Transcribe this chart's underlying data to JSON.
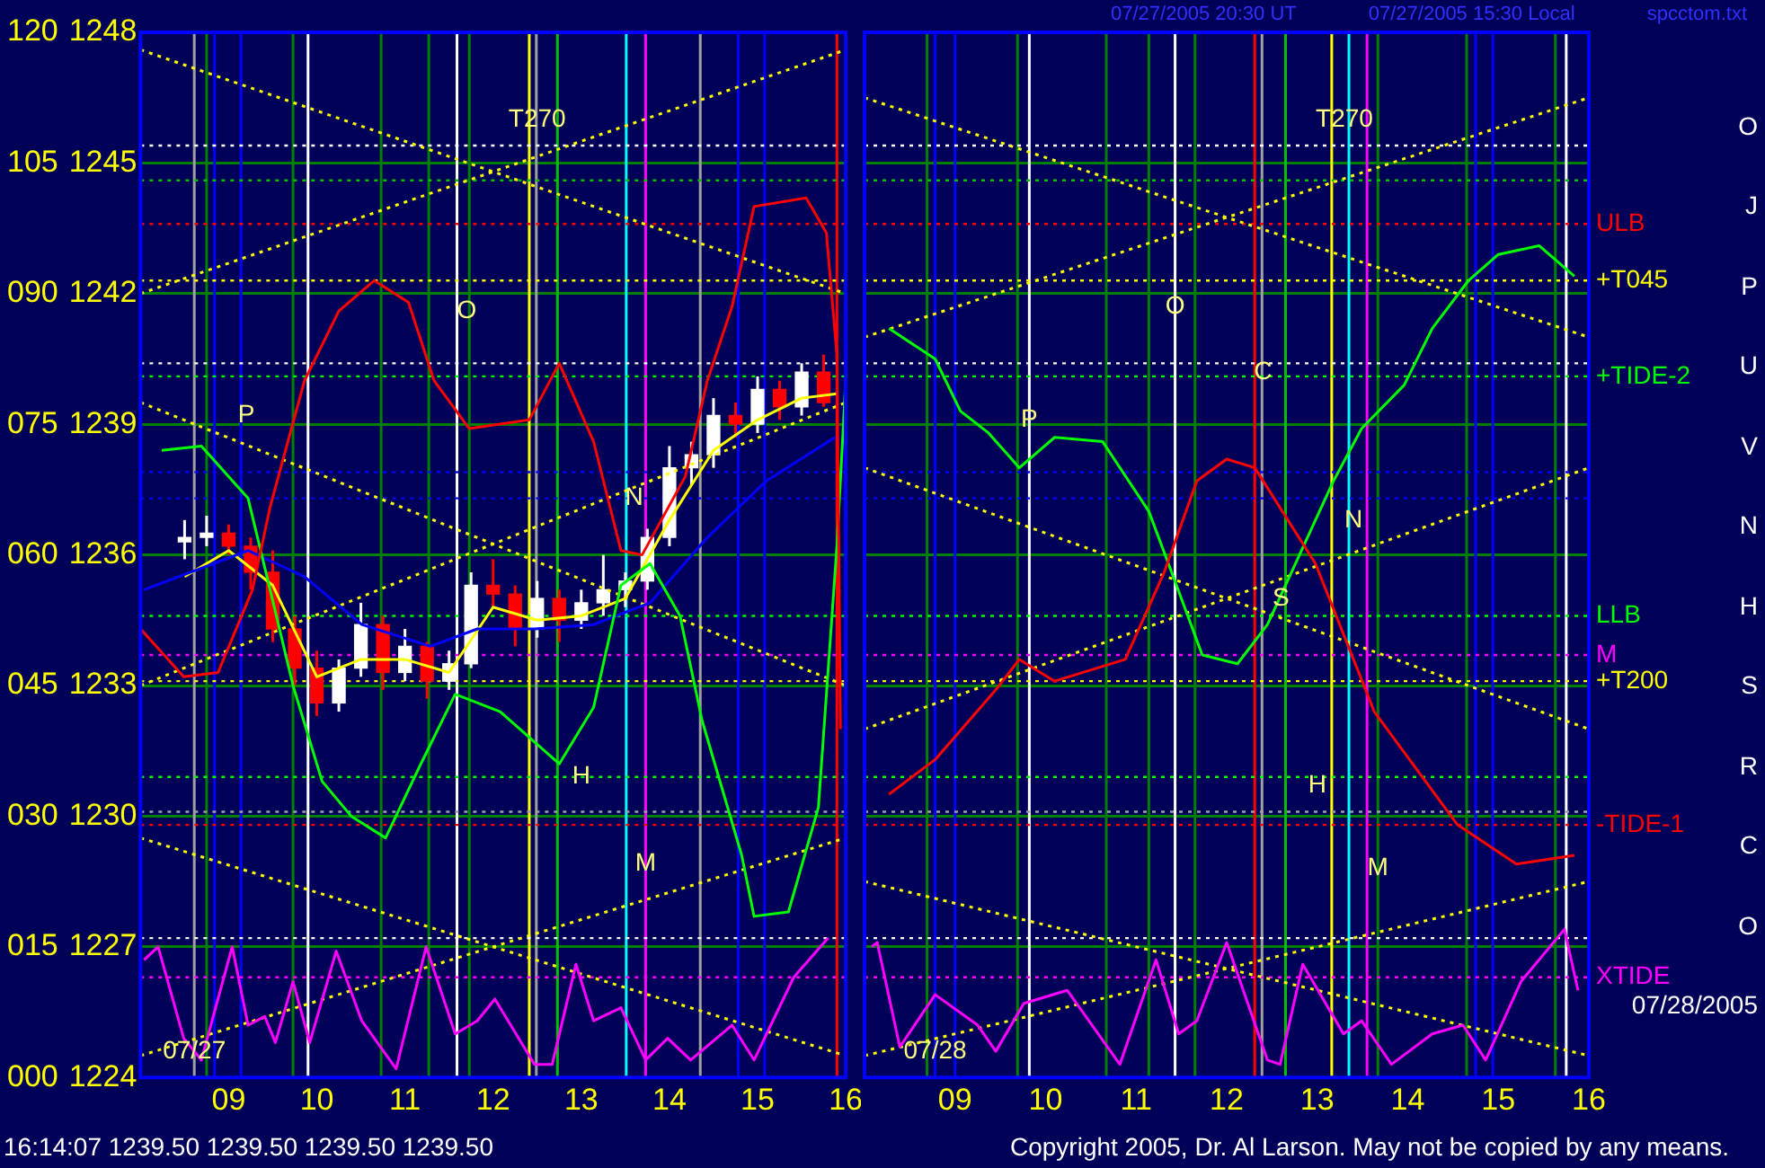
{
  "chart_data": [
    {
      "type": "candlestick",
      "xlim": [
        8,
        16
      ],
      "ylim": [
        1224,
        1248
      ],
      "y2lim": [
        0,
        120
      ],
      "xticks": [
        {
          "value": 9,
          "label": "09"
        },
        10,
        11,
        12,
        13,
        14,
        15,
        16
      ],
      "yticks": [
        1224,
        1227,
        1230,
        1233,
        1236,
        1239,
        1242,
        1245,
        1248
      ],
      "y2ticks": [
        {
          "value": 0,
          "label": "000"
        },
        {
          "value": 15,
          "label": "015"
        },
        {
          "value": 30,
          "label": "030"
        },
        {
          "value": 45,
          "label": "045"
        },
        {
          "value": 60,
          "label": "060"
        },
        {
          "value": 75,
          "label": "075"
        },
        {
          "value": 90,
          "label": "090"
        },
        105,
        120
      ],
      "grid": "y",
      "legend": false,
      "marker": "none",
      "series": [
        {
          "type": "line",
          "color": "#ff0000",
          "x": [
            8.0,
            8.49,
            8.88,
            9.27,
            9.47,
            9.86,
            10.25,
            10.65,
            11.04,
            11.33,
            11.73,
            12.41,
            12.75,
            13.14,
            13.45,
            13.69,
            14.18,
            14.43,
            14.71,
            14.96,
            15.55,
            15.78,
            15.9,
            15.94
          ],
          "values": [
            1234.3,
            1233.2,
            1233.3,
            1235.2,
            1237.1,
            1240.0,
            1241.6,
            1242.3,
            1241.8,
            1240.0,
            1238.9,
            1239.1,
            1240.4,
            1238.6,
            1236.1,
            1236.0,
            1237.8,
            1240.0,
            1241.7,
            1244.0,
            1244.2,
            1243.4,
            1240.6,
            1232.0
          ]
        },
        {
          "type": "line",
          "color": "#00ff00",
          "x": [
            8.24,
            8.69,
            9.22,
            9.47,
            9.73,
            10.06,
            10.39,
            10.78,
            11.18,
            11.57,
            12.08,
            12.75,
            13.14,
            13.45,
            13.78,
            14.12,
            14.37,
            14.82,
            14.96,
            15.35,
            15.69,
            15.9,
            16.0
          ],
          "values": [
            1238.4,
            1238.5,
            1237.3,
            1235.2,
            1233.0,
            1230.8,
            1230.0,
            1229.5,
            1231.2,
            1232.8,
            1232.4,
            1231.2,
            1232.5,
            1235.3,
            1235.8,
            1234.6,
            1232.2,
            1229.1,
            1227.7,
            1227.8,
            1230.2,
            1236.2,
            1240.0
          ]
        },
        {
          "type": "line",
          "color": "#ff00ff",
          "x": [
            8.04,
            8.2,
            8.49,
            8.69,
            9.04,
            9.22,
            9.41,
            9.53,
            9.73,
            9.92,
            10.22,
            10.51,
            10.9,
            11.24,
            11.57,
            11.82,
            12.02,
            12.47,
            12.67,
            12.94,
            13.14,
            13.45,
            13.73,
            13.98,
            14.24,
            14.71,
            14.96,
            15.41,
            15.8
          ],
          "values": [
            1226.7,
            1227.0,
            1224.9,
            1224.4,
            1227.0,
            1225.2,
            1225.4,
            1224.8,
            1226.2,
            1224.8,
            1226.9,
            1225.3,
            1224.2,
            1227.0,
            1225.0,
            1225.3,
            1225.8,
            1224.3,
            1224.3,
            1226.6,
            1225.3,
            1225.6,
            1224.4,
            1224.9,
            1224.4,
            1225.2,
            1224.4,
            1226.3,
            1227.2
          ]
        },
        {
          "type": "line",
          "color": "#0000ff",
          "x": [
            8.04,
            9.22,
            9.86,
            10.51,
            11.29,
            11.82,
            12.47,
            13.14,
            13.78,
            14.43,
            15.1,
            15.88
          ],
          "values": [
            1235.2,
            1236.1,
            1235.5,
            1234.4,
            1233.9,
            1234.3,
            1234.3,
            1234.4,
            1234.9,
            1236.4,
            1237.7,
            1238.7
          ]
        },
        {
          "type": "line",
          "color": "#ffff00",
          "x": [
            8.5,
            9.0,
            9.5,
            10.0,
            10.5,
            11.0,
            11.5,
            12.0,
            12.5,
            13.0,
            13.5,
            14.0,
            14.5,
            15.0,
            15.5,
            15.9
          ],
          "values": [
            1235.5,
            1236.1,
            1235.3,
            1233.2,
            1233.6,
            1233.6,
            1233.3,
            1234.8,
            1234.5,
            1234.6,
            1235.0,
            1236.8,
            1238.4,
            1239.1,
            1239.6,
            1239.7
          ]
        },
        {
          "type": "line",
          "color": "#ffff00",
          "line_style": "dotted",
          "x": [
            8,
            16
          ],
          "values": [
            1247.6,
            1242.0
          ]
        },
        {
          "type": "line",
          "color": "#ffff00",
          "line_style": "dotted",
          "x": [
            8,
            16
          ],
          "values": [
            1242.0,
            1247.6
          ]
        },
        {
          "type": "line",
          "color": "#ffff00",
          "line_style": "dotted",
          "x": [
            8,
            16
          ],
          "values": [
            1239.5,
            1233.0
          ]
        },
        {
          "type": "line",
          "color": "#ffff00",
          "line_style": "dotted",
          "x": [
            8,
            16
          ],
          "values": [
            1233.0,
            1239.5
          ]
        },
        {
          "type": "line",
          "color": "#ffff00",
          "line_style": "dotted",
          "x": [
            8,
            16
          ],
          "values": [
            1229.5,
            1224.5
          ]
        },
        {
          "type": "line",
          "color": "#ffff00",
          "line_style": "dotted",
          "x": [
            8,
            16
          ],
          "values": [
            1224.5,
            1229.5
          ]
        },
        {
          "x": [
            8.5,
            8.75,
            9.0,
            9.25,
            9.5,
            9.75,
            10.0,
            10.25,
            10.5,
            10.75,
            11.0,
            11.25,
            11.5,
            11.75,
            12.0,
            12.25,
            12.5,
            12.75,
            13.0,
            13.25,
            13.5,
            13.75,
            14.0,
            14.25,
            14.5,
            14.75,
            15.0,
            15.25,
            15.5,
            15.75
          ],
          "colors": [
            "#ffffff",
            "#ffffff",
            "#ff0000",
            "#ff0000",
            "#ff0000",
            "#ff0000",
            "#ff0000",
            "#ffffff",
            "#ffffff",
            "#ff0000",
            "#ffffff",
            "#ff0000",
            "#ffffff",
            "#ffffff",
            "#ff0000",
            "#ff0000",
            "#ffffff",
            "#ff0000",
            "#ffffff",
            "#ffffff",
            "#ffffff",
            "#ffffff",
            "#ffffff",
            "#ffffff",
            "#ffffff",
            "#ff0000",
            "#ffffff",
            "#ff0000",
            "#ffffff",
            "#ff0000"
          ],
          "ohlc": [
            [
              1236.3,
              1236.8,
              1235.9,
              1236.4
            ],
            [
              1236.4,
              1236.9,
              1236.2,
              1236.5
            ],
            [
              1236.5,
              1236.7,
              1236.0,
              1236.2
            ],
            [
              1236.2,
              1236.4,
              1235.2,
              1235.6
            ],
            [
              1235.6,
              1236.1,
              1234.0,
              1234.3
            ],
            [
              1234.3,
              1234.6,
              1233.0,
              1233.4
            ],
            [
              1233.4,
              1233.8,
              1232.3,
              1232.6
            ],
            [
              1232.6,
              1233.6,
              1232.4,
              1233.4
            ],
            [
              1233.4,
              1234.9,
              1233.2,
              1234.4
            ],
            [
              1234.4,
              1234.6,
              1232.9,
              1233.3
            ],
            [
              1233.3,
              1234.3,
              1233.1,
              1233.9
            ],
            [
              1233.9,
              1234.0,
              1232.7,
              1233.1
            ],
            [
              1233.1,
              1233.8,
              1232.9,
              1233.5
            ],
            [
              1233.5,
              1235.6,
              1233.4,
              1235.3
            ],
            [
              1235.3,
              1235.9,
              1234.8,
              1235.1
            ],
            [
              1235.1,
              1235.3,
              1233.9,
              1234.3
            ],
            [
              1234.3,
              1235.4,
              1234.1,
              1235.0
            ],
            [
              1235.0,
              1235.2,
              1234.0,
              1234.5
            ],
            [
              1234.5,
              1235.2,
              1234.3,
              1234.9
            ],
            [
              1234.9,
              1236.0,
              1234.6,
              1235.2
            ],
            [
              1235.2,
              1235.6,
              1234.8,
              1235.4
            ],
            [
              1235.4,
              1236.6,
              1235.2,
              1236.4
            ],
            [
              1236.4,
              1238.5,
              1236.2,
              1238.0
            ],
            [
              1238.0,
              1238.6,
              1237.6,
              1238.3
            ],
            [
              1238.3,
              1239.6,
              1238.0,
              1239.2
            ],
            [
              1239.2,
              1239.5,
              1238.7,
              1239.0
            ],
            [
              1239.0,
              1240.1,
              1238.8,
              1239.8
            ],
            [
              1239.8,
              1240.0,
              1239.1,
              1239.4
            ],
            [
              1239.4,
              1240.4,
              1239.2,
              1240.2
            ],
            [
              1240.2,
              1240.6,
              1239.4,
              1239.5
            ]
          ]
        }
      ],
      "ref_lines": [
        {
          "axis": "x",
          "value": 8.61,
          "color": "#a0a0a0"
        },
        {
          "axis": "x",
          "value": 8.75,
          "color": "#008000"
        },
        {
          "axis": "x",
          "value": 8.84,
          "color": "#0000ff"
        },
        {
          "axis": "x",
          "value": 9.14,
          "color": "#0000ff"
        },
        {
          "axis": "x",
          "value": 9.73,
          "color": "#008000"
        },
        {
          "axis": "x",
          "value": 9.9,
          "color": "#ffffff"
        },
        {
          "axis": "x",
          "value": 10.73,
          "color": "#008000"
        },
        {
          "axis": "x",
          "value": 11.27,
          "color": "#008000"
        },
        {
          "axis": "x",
          "value": 11.59,
          "color": "#ffffff"
        },
        {
          "axis": "x",
          "value": 11.73,
          "color": "#008000"
        },
        {
          "axis": "x",
          "value": 12.41,
          "color": "#ffff00"
        },
        {
          "axis": "x",
          "value": 12.49,
          "color": "#a0a0a0"
        },
        {
          "axis": "x",
          "value": 12.73,
          "color": "#00c000"
        },
        {
          "axis": "x",
          "value": 13.51,
          "color": "#00ffff"
        },
        {
          "axis": "x",
          "value": 13.73,
          "color": "#ff00ff"
        },
        {
          "axis": "x",
          "value": 14.35,
          "color": "#a0a0a0"
        },
        {
          "axis": "x",
          "value": 14.78,
          "color": "#0000ff"
        },
        {
          "axis": "x",
          "value": 15.08,
          "color": "#0000ff"
        },
        {
          "axis": "x",
          "value": 15.9,
          "color": "#ff0000"
        },
        {
          "axis": "y",
          "value": 1245.4,
          "color": "#ffffff",
          "line_style": "dotted"
        },
        {
          "axis": "y",
          "value": 1244.6,
          "color": "#00c000",
          "line_style": "dotted"
        },
        {
          "axis": "y",
          "value": 1243.6,
          "color": "#ff0000",
          "line_style": "dotted"
        },
        {
          "axis": "y",
          "value": 1242.3,
          "color": "#ffff00",
          "line_style": "dotted"
        },
        {
          "axis": "y",
          "value": 1240.4,
          "color": "#ffffff",
          "line_style": "dotted"
        },
        {
          "axis": "y",
          "value": 1240.1,
          "color": "#00ff00",
          "line_style": "dotted"
        },
        {
          "axis": "y",
          "value": 1237.9,
          "color": "#0000ff",
          "line_style": "dotted"
        },
        {
          "axis": "y",
          "value": 1237.3,
          "color": "#0000ff",
          "line_style": "dotted"
        },
        {
          "axis": "y",
          "value": 1234.6,
          "color": "#00ff00",
          "line_style": "dotted"
        },
        {
          "axis": "y",
          "value": 1233.7,
          "color": "#ff00ff",
          "line_style": "dotted"
        },
        {
          "axis": "y",
          "value": 1233.1,
          "color": "#ffff00",
          "line_style": "dotted"
        },
        {
          "axis": "y",
          "value": 1230.9,
          "color": "#00ff00",
          "line_style": "dotted"
        },
        {
          "axis": "y",
          "value": 1230.1,
          "color": "#a0a0a0",
          "line_style": "dotted"
        },
        {
          "axis": "y",
          "value": 1229.8,
          "color": "#ff0000",
          "line_style": "dotted"
        },
        {
          "axis": "y",
          "value": 1227.2,
          "color": "#ffffff",
          "line_style": "dotted"
        },
        {
          "axis": "y",
          "value": 1226.3,
          "color": "#ff00ff",
          "line_style": "dotted"
        }
      ],
      "annotations": [
        {
          "text": "T270",
          "x": 12.5,
          "y": 1246.0
        },
        {
          "text": "O",
          "x": 11.7,
          "y": 1241.6
        },
        {
          "text": "P",
          "x": 9.2,
          "y": 1239.2
        },
        {
          "text": "N",
          "x": 13.6,
          "y": 1237.3
        },
        {
          "text": "H",
          "x": 13.0,
          "y": 1230.9
        },
        {
          "text": "M",
          "x": 13.73,
          "y": 1228.9
        },
        {
          "text": "07/27",
          "x": 8.61,
          "y": 1224.6
        },
        "16:14:07  1239.50  1239.50  1239.50  1239.50",
        "Copyright 2005, Dr. Al Larson. May not be copied by any means."
      ]
    },
    {
      "type": "line",
      "xlim": [
        8,
        16
      ],
      "ylim": [
        1224,
        1248
      ],
      "tick_labels": "x",
      "xticks": [
        {
          "value": 9,
          "label": "09"
        },
        10,
        11,
        12,
        13,
        14,
        15,
        16
      ],
      "yticks": [
        1224,
        1227,
        1230,
        1233,
        1236,
        1239,
        1242,
        1245,
        1248
      ],
      "grid": "y",
      "legend": false,
      "marker": "none",
      "series": [
        {
          "color": "#ff0000",
          "x": [
            8.27,
            8.78,
            9.45,
            9.71,
            10.1,
            10.88,
            11.31,
            11.67,
            12.0,
            12.31,
            12.98,
            13.63,
            14.55,
            15.2,
            15.84
          ],
          "values": [
            1230.5,
            1231.3,
            1232.9,
            1233.6,
            1233.1,
            1233.6,
            1235.6,
            1237.7,
            1238.2,
            1238.0,
            1235.8,
            1232.4,
            1229.8,
            1228.9,
            1229.1
          ]
        },
        {
          "color": "#00ff00",
          "x": [
            8.27,
            8.78,
            9.06,
            9.37,
            9.71,
            10.1,
            10.63,
            11.14,
            11.41,
            11.73,
            12.12,
            12.45,
            13.18,
            13.49,
            13.96,
            14.27,
            14.67,
            15.0,
            15.45,
            15.84
          ],
          "values": [
            1241.2,
            1240.5,
            1239.3,
            1238.8,
            1238.0,
            1238.7,
            1238.6,
            1237.0,
            1235.5,
            1233.7,
            1233.5,
            1234.4,
            1237.7,
            1238.9,
            1239.9,
            1241.2,
            1242.3,
            1242.9,
            1243.1,
            1242.4
          ]
        },
        {
          "color": "#ff00ff",
          "x": [
            8.08,
            8.14,
            8.39,
            8.78,
            9.25,
            9.45,
            9.76,
            10.24,
            10.82,
            11.22,
            11.47,
            11.67,
            12.0,
            12.45,
            12.59,
            12.84,
            13.29,
            13.49,
            13.82,
            14.27,
            14.61,
            14.86,
            15.25,
            15.73,
            15.88
          ],
          "values": [
            1227.0,
            1227.1,
            1224.7,
            1225.9,
            1225.2,
            1224.6,
            1225.7,
            1226.0,
            1224.3,
            1226.7,
            1225.0,
            1225.3,
            1227.1,
            1224.4,
            1224.3,
            1226.6,
            1225.0,
            1225.3,
            1224.3,
            1225.0,
            1225.2,
            1224.4,
            1226.2,
            1227.4,
            1226.0
          ]
        },
        {
          "color": "#ffff00",
          "line_style": "dotted",
          "x": [
            8,
            16
          ],
          "values": [
            1246.5,
            1241.0
          ]
        },
        {
          "color": "#ffff00",
          "line_style": "dotted",
          "x": [
            8,
            16
          ],
          "values": [
            1241.0,
            1246.5
          ]
        },
        {
          "color": "#ffff00",
          "line_style": "dotted",
          "x": [
            8,
            16
          ],
          "values": [
            1238.0,
            1232.0
          ]
        },
        {
          "color": "#ffff00",
          "line_style": "dotted",
          "x": [
            8,
            16
          ],
          "values": [
            1232.0,
            1238.0
          ]
        },
        {
          "color": "#ffff00",
          "line_style": "dotted",
          "x": [
            8,
            16
          ],
          "values": [
            1228.5,
            1224.5
          ]
        },
        {
          "color": "#ffff00",
          "line_style": "dotted",
          "x": [
            8,
            16
          ],
          "values": [
            1224.5,
            1228.5
          ]
        }
      ],
      "ref_lines": [
        {
          "axis": "x",
          "value": 8.69,
          "color": "#008000"
        },
        {
          "axis": "x",
          "value": 8.78,
          "color": "#0000ff"
        },
        {
          "axis": "x",
          "value": 9.0,
          "color": "#0000ff"
        },
        {
          "axis": "x",
          "value": 9.69,
          "color": "#008000"
        },
        {
          "axis": "x",
          "value": 9.82,
          "color": "#ffffff"
        },
        {
          "axis": "x",
          "value": 10.67,
          "color": "#008000"
        },
        {
          "axis": "x",
          "value": 11.14,
          "color": "#008000"
        },
        {
          "axis": "x",
          "value": 11.43,
          "color": "#ffffff"
        },
        {
          "axis": "x",
          "value": 11.65,
          "color": "#008000"
        },
        {
          "axis": "x",
          "value": 12.31,
          "color": "#ff0000"
        },
        {
          "axis": "x",
          "value": 12.39,
          "color": "#a0a0a0"
        },
        {
          "axis": "x",
          "value": 12.65,
          "color": "#00c000"
        },
        {
          "axis": "x",
          "value": 13.16,
          "color": "#ffff00"
        },
        {
          "axis": "x",
          "value": 13.35,
          "color": "#00ffff"
        },
        {
          "axis": "x",
          "value": 13.55,
          "color": "#ff00ff"
        },
        {
          "axis": "x",
          "value": 13.67,
          "color": "#008000"
        },
        {
          "axis": "x",
          "value": 14.65,
          "color": "#008000"
        },
        {
          "axis": "x",
          "value": 14.75,
          "color": "#0000ff"
        },
        {
          "axis": "x",
          "value": 14.94,
          "color": "#0000ff"
        },
        {
          "axis": "x",
          "value": 15.63,
          "color": "#008000"
        },
        {
          "axis": "x",
          "value": 15.75,
          "color": "#ffffff"
        },
        {
          "axis": "y",
          "value": 1245.4,
          "color": "#ffffff",
          "line_style": "dotted"
        },
        {
          "axis": "y",
          "value": 1244.6,
          "color": "#00c000",
          "line_style": "dotted"
        },
        {
          "axis": "y",
          "value": 1243.6,
          "color": "#ff0000",
          "line_style": "dotted",
          "label": "ULB"
        },
        {
          "axis": "y",
          "value": 1242.3,
          "color": "#ffff00",
          "line_style": "dotted",
          "label": "+T045"
        },
        {
          "axis": "y",
          "value": 1240.4,
          "color": "#ffffff",
          "line_style": "dotted"
        },
        {
          "axis": "y",
          "value": 1240.1,
          "color": "#00ff00",
          "line_style": "dotted",
          "label": "+TIDE-2"
        },
        {
          "axis": "y",
          "value": 1237.9,
          "color": "#0000ff",
          "line_style": "dotted"
        },
        {
          "axis": "y",
          "value": 1237.3,
          "color": "#0000ff",
          "line_style": "dotted"
        },
        {
          "axis": "y",
          "value": 1234.6,
          "color": "#00ff00",
          "line_style": "dotted",
          "label": "LLB"
        },
        {
          "axis": "y",
          "value": 1233.7,
          "color": "#ff00ff",
          "line_style": "dotted",
          "label": "M"
        },
        {
          "axis": "y",
          "value": 1233.1,
          "color": "#ffff00",
          "line_style": "dotted",
          "label": "+T200"
        },
        {
          "axis": "y",
          "value": 1230.9,
          "color": "#00ff00",
          "line_style": "dotted"
        },
        {
          "axis": "y",
          "value": 1230.1,
          "color": "#a0a0a0",
          "line_style": "dotted"
        },
        {
          "axis": "y",
          "value": 1229.8,
          "color": "#ff0000",
          "line_style": "dotted",
          "label": "-TIDE-1"
        },
        {
          "axis": "y",
          "value": 1227.2,
          "color": "#ffffff",
          "line_style": "dotted"
        },
        {
          "axis": "y",
          "value": 1226.3,
          "color": "#ff00ff",
          "line_style": "dotted",
          "label": "XTIDE"
        }
      ],
      "annotations": [
        "07/27/2005 20:30 UT",
        "07/27/2005 15:30 Local",
        "spcctom.txt",
        {
          "text": "T270",
          "x": 13.3,
          "y": 1246.0
        },
        {
          "text": "O",
          "x": 11.43,
          "y": 1241.7
        },
        {
          "text": "C",
          "x": 12.4,
          "y": 1240.2
        },
        {
          "text": "P",
          "x": 9.82,
          "y": 1239.1
        },
        {
          "text": "N",
          "x": 13.4,
          "y": 1236.8
        },
        {
          "text": "S",
          "x": 12.6,
          "y": 1235.0
        },
        {
          "text": "H",
          "x": 13.0,
          "y": 1230.7
        },
        {
          "text": "M",
          "x": 13.67,
          "y": 1228.8
        },
        {
          "text": "07/28",
          "x": 8.78,
          "y": 1224.6
        },
        "O",
        "J",
        "P",
        "U",
        "V",
        "N",
        "H",
        "S",
        "R",
        "C",
        "O",
        "07/28/2005"
      ]
    }
  ]
}
